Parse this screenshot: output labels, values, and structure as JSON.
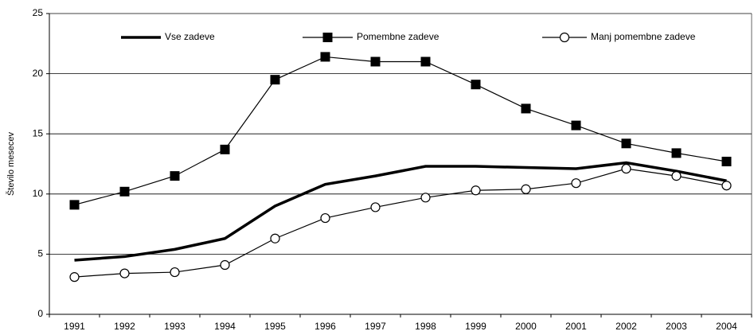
{
  "chart_data": {
    "type": "line",
    "y_label": "Število mesecev",
    "categories": [
      "1991",
      "1992",
      "1993",
      "1994",
      "1995",
      "1996",
      "1997",
      "1998",
      "1999",
      "2000",
      "2001",
      "2002",
      "2003",
      "2004"
    ],
    "series": [
      {
        "name": "Vse zadeve",
        "color": "#000000",
        "marker": "none",
        "width": 3.5,
        "values": [
          4.5,
          4.8,
          5.4,
          6.3,
          9.0,
          10.8,
          11.5,
          12.3,
          12.3,
          12.2,
          12.1,
          12.6,
          11.9,
          11.1
        ]
      },
      {
        "name": "Pomembne zadeve",
        "color": "#000000",
        "marker": "square",
        "width": 1.2,
        "values": [
          9.1,
          10.2,
          11.5,
          13.7,
          19.5,
          21.4,
          21.0,
          21.0,
          19.1,
          17.1,
          15.7,
          14.2,
          13.4,
          12.7
        ]
      },
      {
        "name": "Manj pomembne zadeve",
        "color": "#000000",
        "marker": "circle",
        "width": 1.2,
        "values": [
          3.1,
          3.4,
          3.5,
          4.1,
          6.3,
          8.0,
          8.9,
          9.7,
          10.3,
          10.4,
          10.9,
          12.1,
          11.5,
          10.7
        ]
      }
    ],
    "ylim": [
      0,
      25
    ],
    "yticks": [
      0,
      5,
      10,
      15,
      20,
      25
    ],
    "grid": true,
    "legend": "top"
  }
}
